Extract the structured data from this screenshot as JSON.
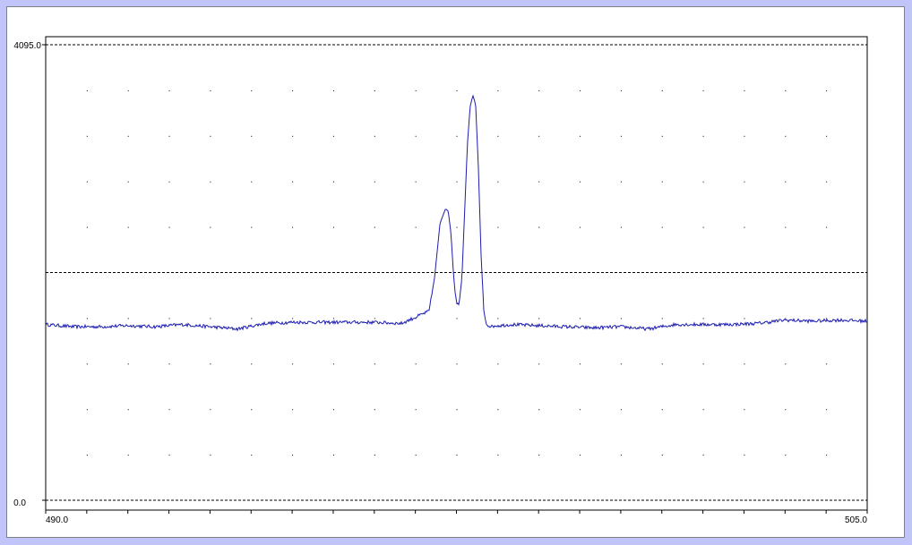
{
  "chart_data": {
    "type": "line",
    "xlim": [
      490.0,
      505.0
    ],
    "ylim": [
      0.0,
      4095.0
    ],
    "x_tick_labels": {
      "min": "490.0",
      "max": "505.0"
    },
    "y_tick_labels": {
      "min": "0.0",
      "max": "4095.0"
    },
    "grid": true,
    "grid_dotted_rows": 10,
    "grid_dotted_cols": 20,
    "baseline_level": 1550,
    "line_color": "#1c1cb0",
    "peaks": [
      {
        "x": 497.4,
        "y": 2620
      },
      {
        "x": 497.6,
        "y": 1760
      },
      {
        "x": 497.9,
        "y": 3640
      }
    ],
    "series": [
      {
        "x": [
          490.0,
          490.5,
          491.0,
          491.5,
          492.0,
          492.5,
          493.0,
          493.5,
          494.0,
          494.5,
          495.0,
          495.5,
          496.0,
          496.5,
          497.0,
          497.1,
          497.2,
          497.3,
          497.35,
          497.4,
          497.45,
          497.5,
          497.55,
          497.6,
          497.65,
          497.7,
          497.75,
          497.8,
          497.85,
          497.9,
          497.95,
          498.0,
          498.05,
          498.1,
          498.15,
          498.2,
          498.3,
          498.5,
          499.0,
          499.5,
          500.0,
          500.5,
          501.0,
          501.5,
          502.0,
          502.5,
          503.0,
          503.5,
          504.0,
          504.5,
          505.0
        ],
        "values": [
          1580,
          1560,
          1560,
          1570,
          1560,
          1580,
          1560,
          1540,
          1590,
          1600,
          1600,
          1600,
          1600,
          1590,
          1700,
          2000,
          2490,
          2620,
          2600,
          2400,
          2000,
          1770,
          1760,
          2000,
          2600,
          3200,
          3540,
          3640,
          3560,
          3000,
          2200,
          1700,
          1580,
          1570,
          1560,
          1570,
          1570,
          1580,
          1570,
          1560,
          1550,
          1560,
          1540,
          1580,
          1580,
          1580,
          1590,
          1620,
          1610,
          1620,
          1610
        ]
      }
    ]
  }
}
